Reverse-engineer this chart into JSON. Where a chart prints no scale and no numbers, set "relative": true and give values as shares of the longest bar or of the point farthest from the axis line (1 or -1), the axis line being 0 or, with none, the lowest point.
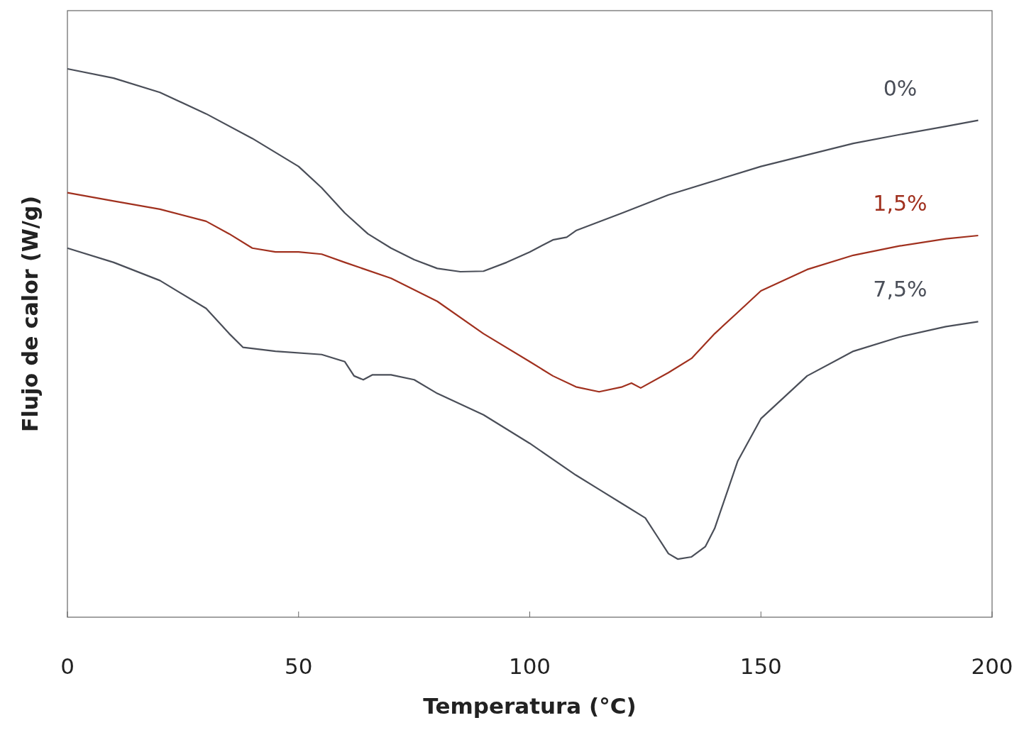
{
  "chart_data": {
    "type": "line",
    "relative": true,
    "xlabel": "Temperatura (°C)",
    "ylabel": "Flujo de calor (W/g)",
    "xlim": [
      0,
      200
    ],
    "xticks": [
      0,
      50,
      100,
      150,
      200
    ],
    "tick_labels": "x",
    "series": [
      {
        "name": "0%",
        "color": "#4a4e58",
        "x": [
          0,
          10,
          20,
          30,
          40,
          50,
          55,
          60,
          65,
          70,
          75,
          80,
          85,
          90,
          95,
          100,
          105,
          108,
          110,
          120,
          130,
          140,
          150,
          160,
          170,
          180,
          190,
          197
        ],
        "values": [
          1.0,
          0.983,
          0.957,
          0.918,
          0.873,
          0.822,
          0.783,
          0.737,
          0.699,
          0.673,
          0.652,
          0.636,
          0.63,
          0.631,
          0.647,
          0.666,
          0.688,
          0.693,
          0.705,
          0.737,
          0.77,
          0.796,
          0.822,
          0.843,
          0.864,
          0.88,
          0.895,
          0.906
        ]
      },
      {
        "name": "1,5%",
        "color": "#a0301e",
        "x": [
          0,
          10,
          20,
          30,
          35,
          40,
          45,
          50,
          55,
          60,
          70,
          80,
          90,
          100,
          105,
          110,
          115,
          120,
          122,
          124,
          130,
          135,
          140,
          145,
          150,
          160,
          170,
          180,
          190,
          197
        ],
        "values": [
          0.774,
          0.759,
          0.744,
          0.722,
          0.699,
          0.673,
          0.666,
          0.666,
          0.662,
          0.647,
          0.618,
          0.576,
          0.517,
          0.466,
          0.44,
          0.42,
          0.411,
          0.42,
          0.427,
          0.418,
          0.446,
          0.472,
          0.517,
          0.556,
          0.595,
          0.634,
          0.66,
          0.677,
          0.69,
          0.696
        ]
      },
      {
        "name": "7,5%",
        "color": "#4a4e58",
        "x": [
          0,
          10,
          20,
          30,
          35,
          38,
          45,
          55,
          60,
          62,
          64,
          66,
          70,
          75,
          80,
          90,
          100,
          110,
          115,
          120,
          125,
          128,
          130,
          132,
          135,
          138,
          140,
          145,
          150,
          160,
          170,
          180,
          190,
          197
        ],
        "values": [
          0.673,
          0.647,
          0.614,
          0.563,
          0.517,
          0.492,
          0.485,
          0.479,
          0.466,
          0.44,
          0.433,
          0.442,
          0.442,
          0.433,
          0.408,
          0.369,
          0.317,
          0.259,
          0.233,
          0.207,
          0.181,
          0.142,
          0.116,
          0.106,
          0.11,
          0.129,
          0.162,
          0.285,
          0.362,
          0.44,
          0.485,
          0.511,
          0.53,
          0.539
        ]
      }
    ]
  }
}
